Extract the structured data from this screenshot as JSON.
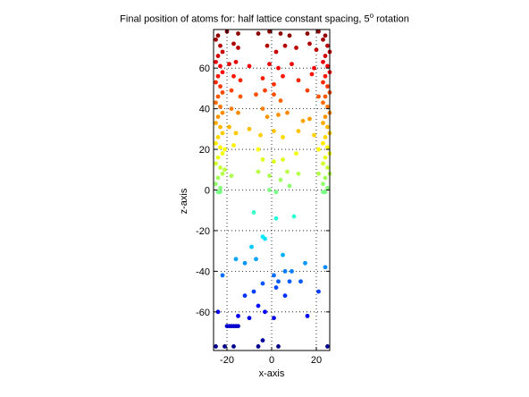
{
  "chart_data": {
    "type": "scatter",
    "title_prefix": "Final position of atoms for: half lattice constant spacing, 5",
    "title_degree": "o",
    "title_suffix": " rotation",
    "xlabel": "x-axis",
    "ylabel": "z-axis",
    "xlim": [
      -26,
      26
    ],
    "ylim": [
      -79,
      79
    ],
    "xticks": [
      -20,
      0,
      20
    ],
    "yticks": [
      -60,
      -40,
      -20,
      0,
      20,
      40,
      60
    ],
    "grid": true,
    "colormap": "jet",
    "points": [
      [
        -24,
        76
      ],
      [
        -23,
        71
      ],
      [
        -24,
        66
      ],
      [
        -23,
        61
      ],
      [
        -24,
        56
      ],
      [
        -23,
        51
      ],
      [
        -24,
        46
      ],
      [
        -23,
        41
      ],
      [
        -24,
        36
      ],
      [
        -23,
        31
      ],
      [
        -24,
        26
      ],
      [
        -23,
        21
      ],
      [
        -24,
        16
      ],
      [
        -23,
        11
      ],
      [
        -24,
        6
      ],
      [
        -23,
        1
      ],
      [
        -24,
        -1
      ],
      [
        -25,
        74
      ],
      [
        -22,
        68
      ],
      [
        -25,
        63
      ],
      [
        -22,
        58
      ],
      [
        -25,
        53
      ],
      [
        -22,
        48
      ],
      [
        -25,
        43
      ],
      [
        -22,
        38
      ],
      [
        -25,
        33
      ],
      [
        -22,
        28
      ],
      [
        -25,
        23
      ],
      [
        -22,
        18
      ],
      [
        -25,
        13
      ],
      [
        -22,
        8
      ],
      [
        -25,
        3
      ],
      [
        24,
        76
      ],
      [
        25,
        71
      ],
      [
        24,
        66
      ],
      [
        25,
        61
      ],
      [
        24,
        56
      ],
      [
        25,
        51
      ],
      [
        24,
        46
      ],
      [
        25,
        41
      ],
      [
        24,
        36
      ],
      [
        25,
        31
      ],
      [
        24,
        26
      ],
      [
        25,
        21
      ],
      [
        24,
        16
      ],
      [
        25,
        11
      ],
      [
        24,
        6
      ],
      [
        25,
        1
      ],
      [
        24,
        -1
      ],
      [
        23,
        74
      ],
      [
        26,
        68
      ],
      [
        23,
        63
      ],
      [
        26,
        58
      ],
      [
        23,
        53
      ],
      [
        26,
        48
      ],
      [
        23,
        43
      ],
      [
        26,
        38
      ],
      [
        23,
        33
      ],
      [
        26,
        28
      ],
      [
        23,
        23
      ],
      [
        26,
        18
      ],
      [
        23,
        13
      ],
      [
        26,
        8
      ],
      [
        23,
        3
      ],
      [
        -20,
        78
      ],
      [
        -15,
        77
      ],
      [
        -6,
        77
      ],
      [
        -1,
        78
      ],
      [
        4,
        77
      ],
      [
        8,
        76
      ],
      [
        16,
        77
      ],
      [
        21,
        78
      ],
      [
        -17,
        72
      ],
      [
        -15,
        70
      ],
      [
        -2,
        71
      ],
      [
        2,
        68
      ],
      [
        6,
        71
      ],
      [
        11,
        70
      ],
      [
        17,
        72
      ],
      [
        20,
        69
      ],
      [
        -19,
        62
      ],
      [
        -16,
        63
      ],
      [
        -10,
        61
      ],
      [
        -1,
        62
      ],
      [
        3,
        60
      ],
      [
        9,
        62
      ],
      [
        19,
        60
      ],
      [
        -17,
        56
      ],
      [
        -14,
        54
      ],
      [
        -4,
        55
      ],
      [
        1,
        52
      ],
      [
        5,
        56
      ],
      [
        12,
        54
      ],
      [
        18,
        57
      ],
      [
        -18,
        49
      ],
      [
        -14,
        46
      ],
      [
        -7,
        47
      ],
      [
        -3,
        49
      ],
      [
        1,
        47
      ],
      [
        4,
        44
      ],
      [
        16,
        49
      ],
      [
        21,
        46
      ],
      [
        -18,
        40
      ],
      [
        -15,
        38
      ],
      [
        -4,
        40
      ],
      [
        -2,
        36
      ],
      [
        3,
        37
      ],
      [
        7,
        38
      ],
      [
        14,
        34
      ],
      [
        17,
        35
      ],
      [
        -19,
        31
      ],
      [
        -16,
        28
      ],
      [
        -10,
        30
      ],
      [
        -5,
        27
      ],
      [
        1,
        29
      ],
      [
        5,
        26
      ],
      [
        12,
        29
      ],
      [
        19,
        27
      ],
      [
        -21,
        20
      ],
      [
        -17,
        22
      ],
      [
        -6,
        20
      ],
      [
        -4,
        15
      ],
      [
        1,
        14
      ],
      [
        5,
        15
      ],
      [
        11,
        18
      ],
      [
        21,
        20
      ],
      [
        -21,
        10
      ],
      [
        -18,
        7
      ],
      [
        -6,
        9
      ],
      [
        -1,
        7
      ],
      [
        4,
        5
      ],
      [
        7,
        9
      ],
      [
        12,
        8
      ],
      [
        21,
        8
      ],
      [
        -1,
        0
      ],
      [
        2,
        -1
      ],
      [
        8,
        2
      ],
      [
        -23,
        -1
      ],
      [
        23,
        -1
      ],
      [
        -8,
        -11
      ],
      [
        2,
        -14
      ],
      [
        10,
        -13
      ],
      [
        -3,
        -24
      ],
      [
        -4,
        -23
      ],
      [
        -9,
        -28
      ],
      [
        -16,
        -34
      ],
      [
        -12,
        -36
      ],
      [
        -7,
        -34
      ],
      [
        5,
        -32
      ],
      [
        -22,
        -42
      ],
      [
        6,
        -40
      ],
      [
        9,
        -40
      ],
      [
        15,
        -36
      ],
      [
        24,
        -38
      ],
      [
        -12,
        -52
      ],
      [
        -8,
        -50
      ],
      [
        -4,
        -46
      ],
      [
        1,
        -42
      ],
      [
        3,
        -45
      ],
      [
        8,
        -45
      ],
      [
        2,
        -48
      ],
      [
        6,
        -52
      ],
      [
        13,
        -45
      ],
      [
        21,
        -50
      ],
      [
        -6,
        -57
      ],
      [
        -3,
        -60
      ],
      [
        1,
        -63
      ],
      [
        -10,
        -63
      ],
      [
        16,
        -62
      ],
      [
        -24,
        -60
      ],
      [
        -15,
        -62
      ],
      [
        -20,
        -67
      ],
      [
        -17,
        -67
      ],
      [
        -18,
        -67
      ],
      [
        -19,
        -67
      ],
      [
        -16,
        -67
      ],
      [
        -15,
        -67
      ],
      [
        -25,
        -77
      ],
      [
        -21,
        -77
      ],
      [
        -17,
        -77
      ],
      [
        -6,
        -77
      ],
      [
        -4,
        -74
      ],
      [
        3,
        -77
      ],
      [
        25,
        -77
      ]
    ]
  }
}
